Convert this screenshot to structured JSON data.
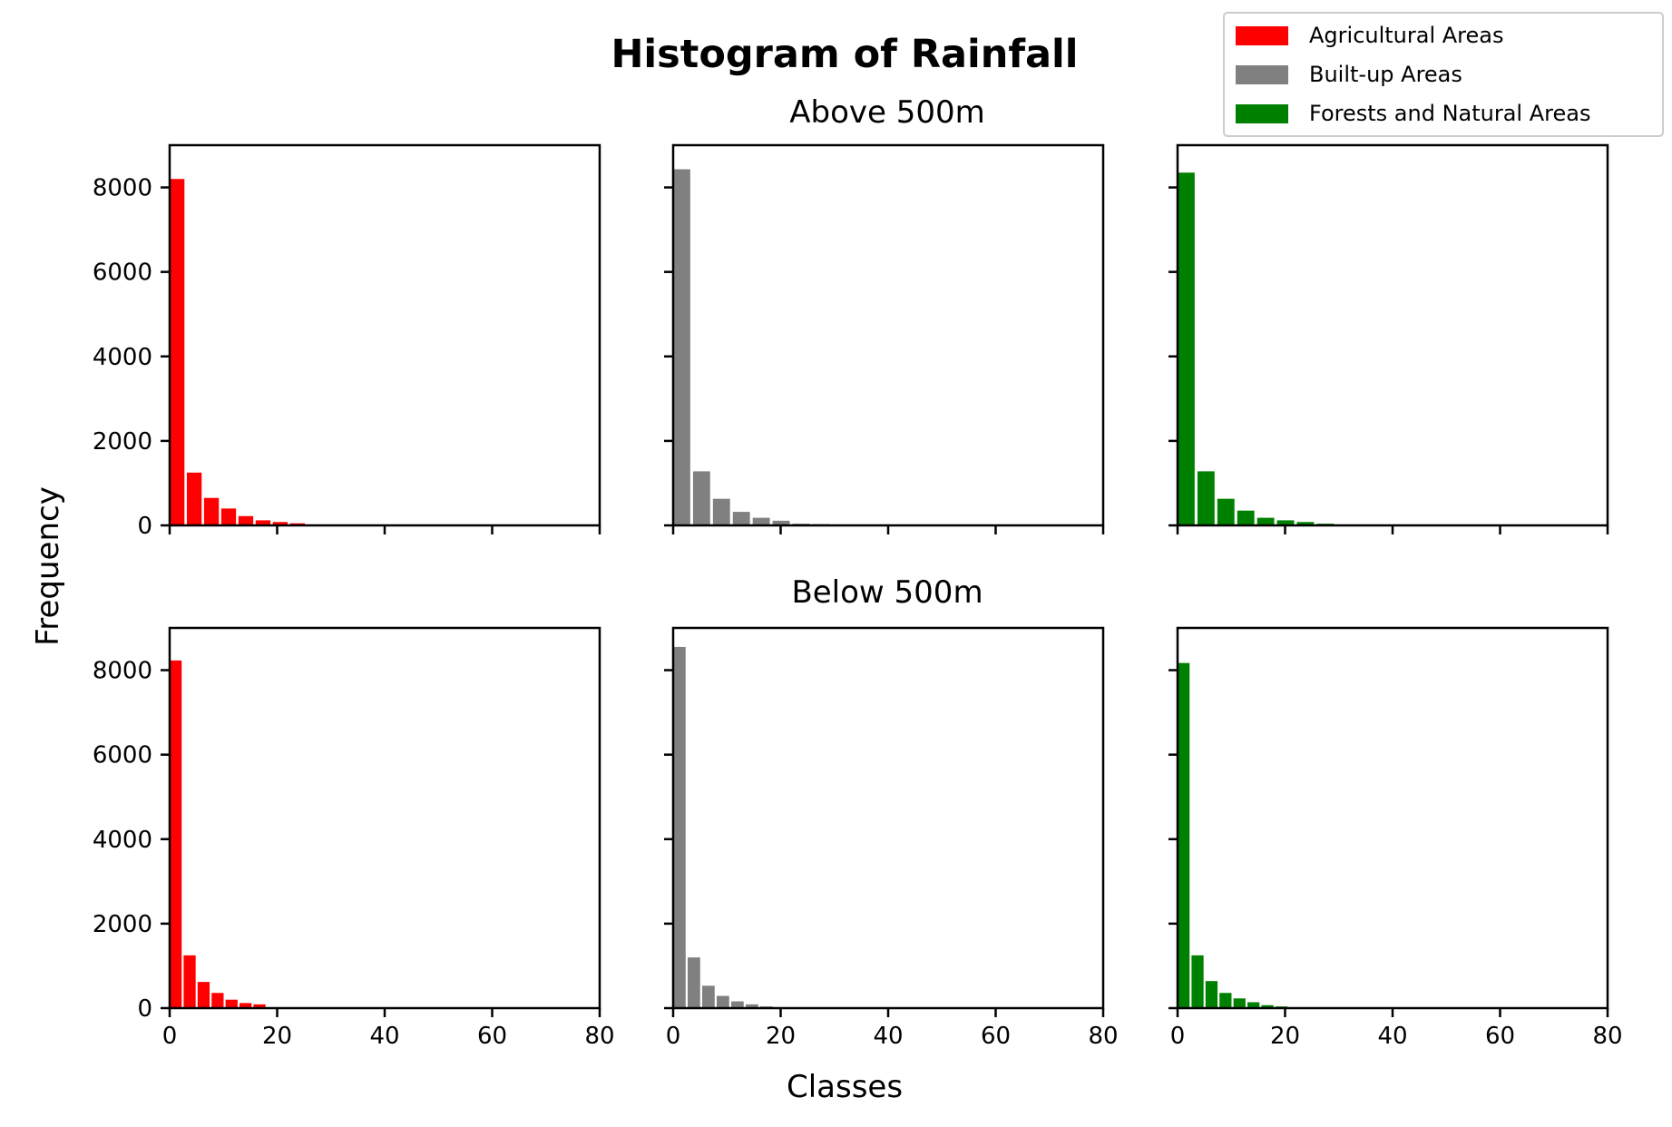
{
  "chart_data": {
    "type": "bar",
    "title": "Histogram of Rainfall",
    "xlabel": "Classes",
    "ylabel": "Frequency",
    "xlim": [
      0,
      80
    ],
    "ylim": [
      0,
      9000
    ],
    "xticks": [
      0,
      20,
      40,
      60,
      80
    ],
    "yticks": [
      0,
      2000,
      4000,
      6000,
      8000
    ],
    "grid": false,
    "legend_position": "top-right",
    "legend": [
      {
        "name": "Agricultural Areas",
        "color": "#ff0000"
      },
      {
        "name": "Built-up Areas",
        "color": "#808080"
      },
      {
        "name": "Forests and Natural Areas",
        "color": "#008000"
      }
    ],
    "rows": [
      {
        "title": "Above 500m",
        "panels": [
          {
            "series": "Agricultural Areas",
            "color": "#ff0000",
            "bin_width": 3.2,
            "values": [
              8200,
              1250,
              650,
              400,
              220,
              120,
              80,
              50,
              20
            ]
          },
          {
            "series": "Built-up Areas",
            "color": "#808080",
            "bin_width": 3.7,
            "values": [
              8430,
              1280,
              630,
              320,
              180,
              110,
              40,
              30,
              10
            ]
          },
          {
            "series": "Forests and Natural Areas",
            "color": "#008000",
            "bin_width": 3.7,
            "values": [
              8350,
              1280,
              630,
              350,
              180,
              120,
              80,
              40,
              10
            ]
          }
        ]
      },
      {
        "title": "Below 500m",
        "panels": [
          {
            "series": "Agricultural Areas",
            "color": "#ff0000",
            "bin_width": 2.6,
            "values": [
              8230,
              1250,
              620,
              360,
              200,
              120,
              90,
              10
            ]
          },
          {
            "series": "Built-up Areas",
            "color": "#808080",
            "bin_width": 2.7,
            "values": [
              8550,
              1200,
              530,
              290,
              160,
              90,
              40,
              10
            ]
          },
          {
            "series": "Forests and Natural Areas",
            "color": "#008000",
            "bin_width": 2.6,
            "values": [
              8170,
              1250,
              640,
              360,
              230,
              140,
              70,
              40,
              10
            ]
          }
        ]
      }
    ]
  }
}
